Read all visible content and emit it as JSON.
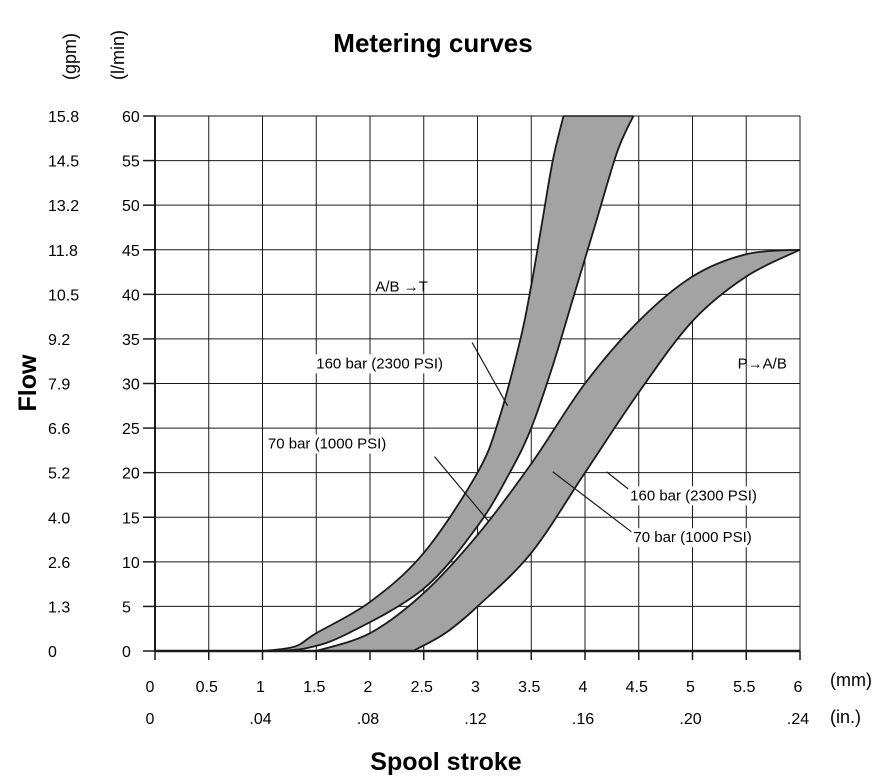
{
  "chart_data": {
    "type": "area",
    "title": "Metering curves",
    "xlabel": "Spool stroke",
    "ylabel": "Flow",
    "x_unit_mm": "(mm)",
    "x_unit_in": "(in.)",
    "y_unit_gpm": "(gpm)",
    "y_unit_lmin": "(l/min)",
    "xlim": [
      0,
      6
    ],
    "ylim": [
      0,
      60
    ],
    "grid": true,
    "x_ticks_mm": [
      "0",
      "0.5",
      "1",
      "1.5",
      "2",
      "2.5",
      "3",
      "3.5",
      "4",
      "4.5",
      "5",
      "5.5",
      "6"
    ],
    "x_ticks_in": [
      {
        "label": "0",
        "mm": 0
      },
      {
        "label": ".04",
        "mm": 1
      },
      {
        "label": ".08",
        "mm": 2
      },
      {
        "label": ".12",
        "mm": 3
      },
      {
        "label": ".16",
        "mm": 4
      },
      {
        "label": ".20",
        "mm": 5
      },
      {
        "label": ".24",
        "mm": 6
      }
    ],
    "y_ticks_lmin": [
      "0",
      "5",
      "10",
      "15",
      "20",
      "25",
      "30",
      "35",
      "40",
      "45",
      "50",
      "55",
      "60"
    ],
    "y_ticks_gpm": [
      "0",
      "1.3",
      "2.6",
      "4.0",
      "5.2",
      "6.6",
      "7.9",
      "9.2",
      "10.5",
      "11.8",
      "13.2",
      "14.5",
      "15.8"
    ],
    "bands": [
      {
        "label": "A/B →T",
        "upper": {
          "label": "160 bar (2300 PSI)",
          "points": [
            [
              1.0,
              0
            ],
            [
              1.3,
              0.5
            ],
            [
              1.5,
              2
            ],
            [
              2.0,
              5.5
            ],
            [
              2.5,
              11
            ],
            [
              3.0,
              20
            ],
            [
              3.2,
              26
            ],
            [
              3.4,
              35
            ],
            [
              3.5,
              41
            ],
            [
              3.6,
              48
            ],
            [
              3.7,
              55
            ],
            [
              3.8,
              60
            ]
          ]
        },
        "lower": {
          "label": "70 bar (1000 PSI)",
          "points": [
            [
              1.0,
              0
            ],
            [
              1.4,
              0.3
            ],
            [
              1.8,
              2
            ],
            [
              2.5,
              7
            ],
            [
              3.0,
              14
            ],
            [
              3.3,
              20
            ],
            [
              3.5,
              25
            ],
            [
              3.7,
              32
            ],
            [
              3.9,
              40
            ],
            [
              4.1,
              48
            ],
            [
              4.3,
              56
            ],
            [
              4.45,
              60
            ]
          ]
        }
      },
      {
        "label": "P→A/B",
        "upper": {
          "label": "160 bar (2300 PSI)",
          "points": [
            [
              1.5,
              0
            ],
            [
              2.0,
              2
            ],
            [
              2.5,
              6.5
            ],
            [
              3.0,
              13
            ],
            [
              3.5,
              21
            ],
            [
              4.0,
              30
            ],
            [
              4.5,
              37
            ],
            [
              5.0,
              42
            ],
            [
              5.5,
              44.5
            ],
            [
              6.0,
              45
            ]
          ]
        },
        "lower": {
          "label": "70 bar (1000 PSI)",
          "points": [
            [
              2.4,
              0
            ],
            [
              2.7,
              2
            ],
            [
              3.0,
              5
            ],
            [
              3.5,
              11
            ],
            [
              4.0,
              20
            ],
            [
              4.5,
              29
            ],
            [
              5.0,
              37
            ],
            [
              5.5,
              42
            ],
            [
              6.0,
              45
            ]
          ]
        }
      }
    ]
  },
  "style": {
    "band_fill": "#a3a3a3",
    "line_color": "#1a1a1a"
  }
}
